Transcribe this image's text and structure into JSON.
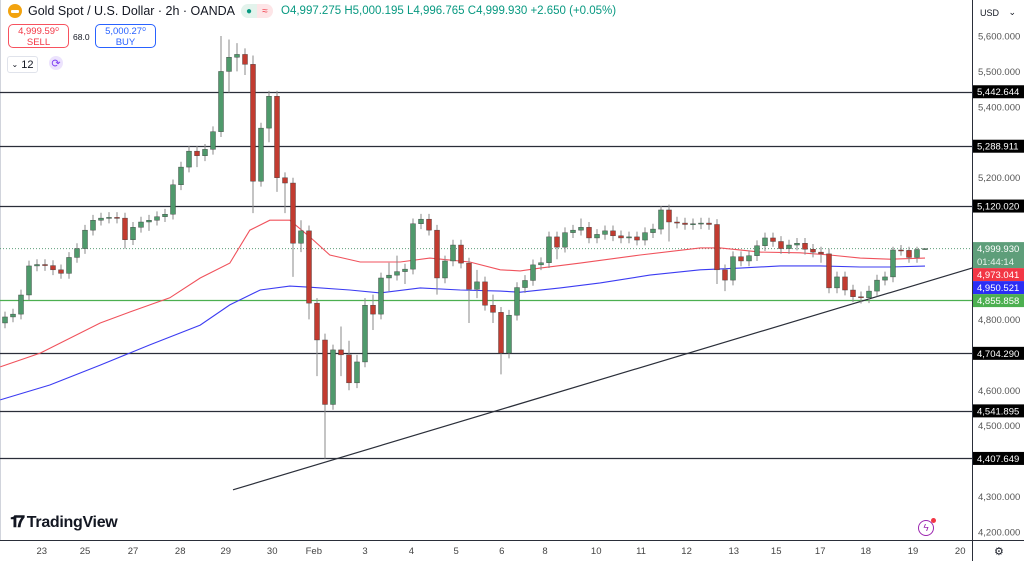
{
  "header": {
    "symbol_title": "Gold Spot / U.S. Dollar · 2h · OANDA",
    "open": "O4,997.275",
    "high": "H5,000.195",
    "low": "L4,996.765",
    "close": "C4,999.930",
    "change": "+2.650 (+0.05%)",
    "market_status_icon": "dot-icon",
    "indicator_icon": "approx-icon"
  },
  "trade": {
    "sell_price": "4,999.59⁰",
    "sell_label": "SELL",
    "spread": "68.0",
    "buy_price": "5,000.27⁰",
    "buy_label": "BUY"
  },
  "toolbar": {
    "interval_value": "12"
  },
  "brand": {
    "name": "TradingView"
  },
  "price_scale": {
    "currency": "USD"
  },
  "colors": {
    "up": "#4f9a6c",
    "down": "#c23b30",
    "ma_red": "#f0525c",
    "ma_blue": "#3c3cf2",
    "level": "#2a2e39",
    "support": "#4caf50",
    "last_price": "#5e9e7a"
  },
  "chart_data": {
    "type": "candlestick",
    "title": "",
    "ylim": [
      4200,
      5600
    ],
    "y_ticks": [
      "5,600.000",
      "5,500.000",
      "5,400.000",
      "5,200.000",
      "4,800.000",
      "4,600.000",
      "4,500.000",
      "4,300.000",
      "4,200.000"
    ],
    "y_tick_values": [
      5600,
      5500,
      5400,
      5200,
      4800,
      4600,
      4500,
      4300,
      4200
    ],
    "x_ticks": [
      {
        "label": "23",
        "bar": 4.6
      },
      {
        "label": "25",
        "bar": 10
      },
      {
        "label": "27",
        "bar": 16
      },
      {
        "label": "28",
        "bar": 21.9
      },
      {
        "label": "29",
        "bar": 27.6
      },
      {
        "label": "30",
        "bar": 33.4
      },
      {
        "label": "Feb",
        "bar": 38.6
      },
      {
        "label": "3",
        "bar": 45
      },
      {
        "label": "4",
        "bar": 50.8
      },
      {
        "label": "5",
        "bar": 56.4
      },
      {
        "label": "6",
        "bar": 62.1
      },
      {
        "label": "8",
        "bar": 67.5
      },
      {
        "label": "10",
        "bar": 73.9
      },
      {
        "label": "11",
        "bar": 79.5
      },
      {
        "label": "12",
        "bar": 85.2
      },
      {
        "label": "13",
        "bar": 91.1
      },
      {
        "label": "15",
        "bar": 96.4
      },
      {
        "label": "17",
        "bar": 101.9
      },
      {
        "label": "18",
        "bar": 107.6
      },
      {
        "label": "19",
        "bar": 113.5
      },
      {
        "label": "20",
        "bar": 119.4
      }
    ],
    "close": [
      4807,
      4815,
      4869,
      4951,
      4955,
      4952,
      4940,
      4930,
      4975,
      5000,
      5052,
      5080,
      5086,
      5088,
      5086,
      5025,
      5060,
      5075,
      5080,
      5090,
      5097,
      5180,
      5230,
      5275,
      5262,
      5280,
      5330,
      5500,
      5540,
      5548,
      5520,
      5190,
      5340,
      5430,
      5200,
      5185,
      5015,
      5050,
      4846,
      4742,
      4560,
      4714,
      4700,
      4621,
      4680,
      4840,
      4815,
      4917,
      4925,
      4935,
      4942,
      5070,
      5083,
      5052,
      4917,
      4965,
      5010,
      4959,
      4885,
      4906,
      4840,
      4820,
      4705,
      4812,
      4890,
      4910,
      4954,
      4960,
      5033,
      5004,
      5045,
      5052,
      5060,
      5030,
      5040,
      5050,
      5036,
      5030,
      5033,
      5024,
      5045,
      5055,
      5109,
      5075,
      5072,
      5068,
      5070,
      5072,
      5068,
      4940,
      4911,
      4977,
      4965,
      4980,
      5008,
      5030,
      5020,
      5000,
      5010,
      5015,
      4998,
      4990,
      4985,
      4889,
      4920,
      4883,
      4864,
      4861,
      4880,
      4911,
      4920,
      4996,
      4995,
      4975,
      4997.275,
      4999.93
    ],
    "open": [
      4790,
      4807,
      4815,
      4869,
      4951,
      4955,
      4952,
      4940,
      4930,
      4975,
      5000,
      5052,
      5080,
      5086,
      5088,
      5086,
      5025,
      5060,
      5075,
      5080,
      5090,
      5097,
      5180,
      5230,
      5275,
      5262,
      5280,
      5330,
      5500,
      5540,
      5548,
      5520,
      5190,
      5340,
      5430,
      5200,
      5185,
      5015,
      5050,
      4846,
      4742,
      4560,
      4714,
      4700,
      4621,
      4680,
      4840,
      4815,
      4917,
      4925,
      4935,
      4942,
      5070,
      5083,
      5052,
      4917,
      4965,
      5010,
      4959,
      4885,
      4906,
      4840,
      4820,
      4705,
      4812,
      4890,
      4910,
      4954,
      4960,
      5033,
      5004,
      5045,
      5052,
      5060,
      5030,
      5040,
      5050,
      5036,
      5030,
      5033,
      5024,
      5045,
      5055,
      5109,
      5075,
      5072,
      5068,
      5070,
      5072,
      5068,
      4940,
      4911,
      4977,
      4965,
      4980,
      5008,
      5030,
      5020,
      5000,
      5010,
      5015,
      4998,
      4990,
      4985,
      4889,
      4920,
      4883,
      4864,
      4861,
      4880,
      4911,
      4920,
      4996,
      4995,
      4975,
      4997.275
    ],
    "high": [
      4822,
      4830,
      4884,
      4966,
      4970,
      4970,
      4967,
      4955,
      4990,
      5015,
      5067,
      5095,
      5101,
      5103,
      5103,
      5101,
      5075,
      5090,
      5095,
      5105,
      5112,
      5195,
      5245,
      5290,
      5290,
      5295,
      5345,
      5600,
      5590,
      5580,
      5565,
      5545,
      5355,
      5445,
      5445,
      5215,
      5200,
      5080,
      5065,
      4860,
      4760,
      4729,
      4780,
      4740,
      4700,
      4860,
      4870,
      4932,
      4960,
      4980,
      4957,
      5085,
      5098,
      5098,
      5067,
      4980,
      5025,
      5025,
      4974,
      4940,
      4921,
      4870,
      4835,
      4827,
      4905,
      4925,
      4969,
      4975,
      5048,
      5048,
      5060,
      5067,
      5085,
      5075,
      5055,
      5065,
      5065,
      5051,
      5048,
      5048,
      5060,
      5070,
      5120,
      5124,
      5090,
      5087,
      5085,
      5087,
      5087,
      5083,
      4955,
      4992,
      4992,
      4995,
      5023,
      5045,
      5045,
      5035,
      5025,
      5030,
      5030,
      5013,
      5005,
      5000,
      4935,
      4935,
      4898,
      4879,
      4895,
      4926,
      4935,
      5005,
      5010,
      5005,
      5005,
      5000.195
    ],
    "low": [
      4775,
      4792,
      4800,
      4854,
      4936,
      4937,
      4925,
      4915,
      4915,
      4960,
      4985,
      5037,
      5065,
      5071,
      5071,
      5000,
      5010,
      5045,
      5050,
      5065,
      5075,
      5082,
      5165,
      5215,
      5230,
      5247,
      5265,
      5315,
      5440,
      5500,
      5490,
      5100,
      5175,
      5300,
      5160,
      5100,
      4920,
      4990,
      4800,
      4640,
      4407,
      4545,
      4640,
      4600,
      4606,
      4665,
      4770,
      4800,
      4880,
      4910,
      4900,
      4927,
      5055,
      5037,
      4870,
      4902,
      4950,
      4944,
      4790,
      4860,
      4825,
      4790,
      4645,
      4690,
      4797,
      4875,
      4895,
      4939,
      4945,
      4970,
      4989,
      5030,
      5037,
      5015,
      5015,
      5025,
      5021,
      5015,
      5015,
      5009,
      5009,
      5030,
      5040,
      5020,
      5057,
      5053,
      5053,
      5055,
      5053,
      4900,
      4880,
      4896,
      4950,
      4950,
      4965,
      4993,
      5005,
      4985,
      4985,
      4995,
      4983,
      4975,
      4960,
      4874,
      4874,
      4868,
      4849,
      4845,
      4846,
      4865,
      4896,
      4905,
      4980,
      4960,
      4960,
      4996.765
    ],
    "moving_averages": [
      {
        "color_key": "ma_red",
        "points": [
          [
            -0.6,
            4666
          ],
          [
            4.4,
            4705
          ],
          [
            11.9,
            4790
          ],
          [
            15.6,
            4821
          ],
          [
            20.6,
            4861
          ],
          [
            24.4,
            4917
          ],
          [
            28.1,
            4959
          ],
          [
            30.6,
            5052
          ],
          [
            33.1,
            5080
          ],
          [
            35.6,
            5080
          ],
          [
            38.1,
            5033
          ],
          [
            40.6,
            4982
          ],
          [
            44.4,
            4962
          ],
          [
            49.4,
            4962
          ],
          [
            53.1,
            4973
          ],
          [
            58.1,
            4962
          ],
          [
            61.9,
            4940
          ],
          [
            64.4,
            4937
          ],
          [
            66.9,
            4945
          ],
          [
            71.9,
            4959
          ],
          [
            79.4,
            4982
          ],
          [
            86.9,
            5002
          ],
          [
            89.4,
            5002
          ],
          [
            94.4,
            4990
          ],
          [
            99.4,
            4988
          ],
          [
            103.1,
            4982
          ],
          [
            106.9,
            4973
          ],
          [
            110.6,
            4970
          ],
          [
            115,
            4973.041
          ]
        ]
      },
      {
        "color_key": "ma_blue",
        "points": [
          [
            -0.6,
            4573
          ],
          [
            5.6,
            4615
          ],
          [
            11.9,
            4671
          ],
          [
            18.1,
            4728
          ],
          [
            24.4,
            4784
          ],
          [
            28.1,
            4841
          ],
          [
            31.9,
            4883
          ],
          [
            35.6,
            4894
          ],
          [
            38.1,
            4891
          ],
          [
            43.1,
            4883
          ],
          [
            46.9,
            4875
          ],
          [
            51.9,
            4889
          ],
          [
            56.9,
            4883
          ],
          [
            61.9,
            4880
          ],
          [
            64.4,
            4877
          ],
          [
            69.4,
            4889
          ],
          [
            74.4,
            4903
          ],
          [
            80.6,
            4925
          ],
          [
            86.9,
            4940
          ],
          [
            91.9,
            4945
          ],
          [
            96.9,
            4951
          ],
          [
            101.9,
            4951
          ],
          [
            106.9,
            4948
          ],
          [
            110.6,
            4948
          ],
          [
            115,
            4950.521
          ]
        ]
      }
    ],
    "horizontal_levels": [
      {
        "value": 5442.644,
        "label": "5,442.644",
        "kind": "resistance"
      },
      {
        "value": 5288.911,
        "label": "5,288.911",
        "kind": "resistance"
      },
      {
        "value": 5120.02,
        "label": "5,120.020",
        "kind": "resistance"
      },
      {
        "value": 4855.858,
        "label": "4,855.858",
        "kind": "support"
      },
      {
        "value": 4704.29,
        "label": "4,704.290",
        "kind": "support"
      },
      {
        "value": 4541.895,
        "label": "4,541.895",
        "kind": "support"
      },
      {
        "value": 4407.649,
        "label": "4,407.649",
        "kind": "support"
      }
    ],
    "trendline": [
      [
        28.5,
        4319
      ],
      [
        120.9,
        4945
      ]
    ],
    "last_price": {
      "value": 4999.93,
      "label": "4,999.930",
      "countdown": "01:44:14"
    },
    "ma_labels": [
      {
        "value": 4973.041,
        "label": "4,973.041",
        "color_key": "ma_red"
      },
      {
        "value": 4950.521,
        "label": "4,950.521",
        "color_key": "ma_blue"
      }
    ]
  }
}
